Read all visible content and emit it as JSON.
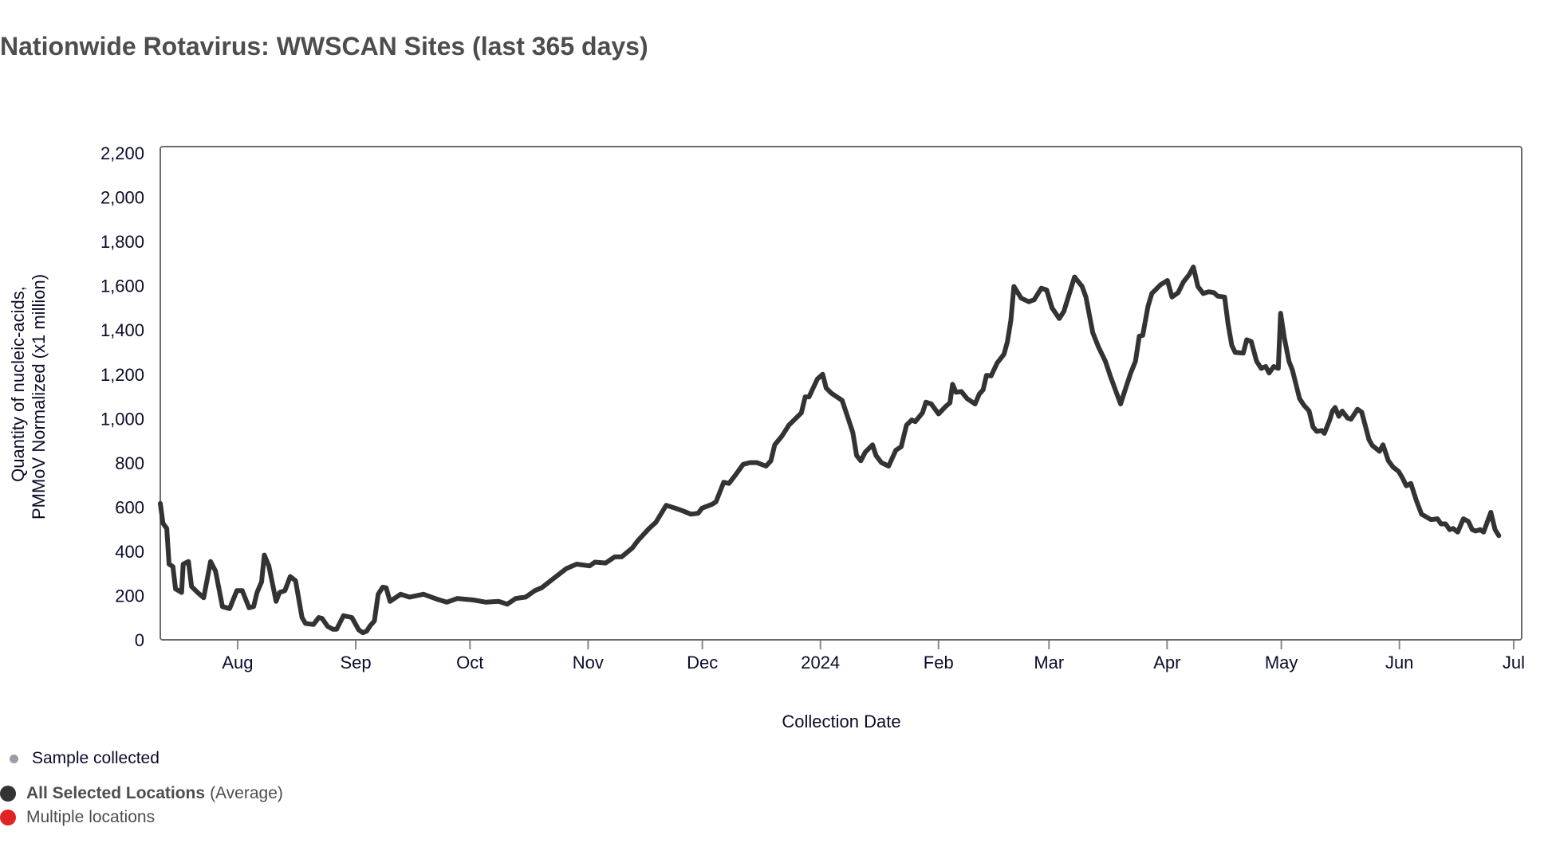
{
  "title": "Nationwide Rotavirus: WWSCAN Sites (last 365 days)",
  "legend": {
    "sample": {
      "label": "Sample collected",
      "color": "#9a9ca6"
    },
    "average": {
      "label_bold": "All Selected Locations",
      "label_suffix": "(Average)",
      "color": "#333333"
    },
    "multiple": {
      "label": "Multiple locations",
      "color": "#e02424"
    }
  },
  "chart_data": {
    "type": "line",
    "title": "Nationwide Rotavirus: WWSCAN Sites (last 365 days)",
    "xlabel": "Collection Date",
    "ylabel_lines": [
      "Quantity of nucleic-acids,",
      "PMMoV Normalized (x1 million)"
    ],
    "x_unit": "days since 2023-08-01",
    "xlim": [
      -20.3,
      337.1
    ],
    "ylim": [
      0,
      2229
    ],
    "grid": false,
    "line_color": "#333333",
    "yticks": [
      {
        "value": 0,
        "label": "0"
      },
      {
        "value": 200,
        "label": "200"
      },
      {
        "value": 400,
        "label": "400"
      },
      {
        "value": 600,
        "label": "600"
      },
      {
        "value": 800,
        "label": "800"
      },
      {
        "value": 1000,
        "label": "1,000"
      },
      {
        "value": 1200,
        "label": "1,200"
      },
      {
        "value": 1400,
        "label": "1,400"
      },
      {
        "value": 1600,
        "label": "1,600"
      },
      {
        "value": 1800,
        "label": "1,800"
      },
      {
        "value": 2000,
        "label": "2,000"
      },
      {
        "value": 2200,
        "label": "2,200"
      }
    ],
    "xticks": [
      {
        "value": 0,
        "label": "Aug"
      },
      {
        "value": 31,
        "label": "Sep"
      },
      {
        "value": 61,
        "label": "Oct"
      },
      {
        "value": 92,
        "label": "Nov"
      },
      {
        "value": 122,
        "label": "Dec"
      },
      {
        "value": 153,
        "label": "2024"
      },
      {
        "value": 184,
        "label": "Feb"
      },
      {
        "value": 213,
        "label": "Mar"
      },
      {
        "value": 244,
        "label": "Apr"
      },
      {
        "value": 274,
        "label": "May"
      },
      {
        "value": 305,
        "label": "Jun"
      },
      {
        "value": 335,
        "label": "Jul"
      }
    ],
    "series": [
      {
        "name": "All Selected Locations (Average)",
        "points": [
          [
            -20.3,
            616
          ],
          [
            -19.6,
            527
          ],
          [
            -18.6,
            503
          ],
          [
            -18,
            342
          ],
          [
            -17,
            331
          ],
          [
            -16.3,
            230
          ],
          [
            -14.7,
            214
          ],
          [
            -14.3,
            342
          ],
          [
            -12.9,
            354
          ],
          [
            -12.1,
            241
          ],
          [
            -10.5,
            214
          ],
          [
            -8.9,
            190
          ],
          [
            -7.1,
            354
          ],
          [
            -5.8,
            310
          ],
          [
            -4,
            150
          ],
          [
            -2.1,
            141
          ],
          [
            -0.2,
            222
          ],
          [
            1.2,
            222
          ],
          [
            3,
            145
          ],
          [
            4.2,
            150
          ],
          [
            5.1,
            214
          ],
          [
            6.3,
            262
          ],
          [
            7,
            383
          ],
          [
            8.2,
            334
          ],
          [
            10.1,
            174
          ],
          [
            11,
            214
          ],
          [
            12.4,
            222
          ],
          [
            13.8,
            286
          ],
          [
            15.2,
            267
          ],
          [
            16.9,
            101
          ],
          [
            17.8,
            74
          ],
          [
            19.9,
            69
          ],
          [
            21.3,
            101
          ],
          [
            22.2,
            96
          ],
          [
            23.6,
            61
          ],
          [
            25,
            48
          ],
          [
            26,
            48
          ],
          [
            27.8,
            109
          ],
          [
            30,
            101
          ],
          [
            31.8,
            45
          ],
          [
            32.9,
            32
          ],
          [
            33.9,
            40
          ],
          [
            34.8,
            64
          ],
          [
            35.9,
            85
          ],
          [
            36.9,
            206
          ],
          [
            38.1,
            238
          ],
          [
            39,
            235
          ],
          [
            40,
            174
          ],
          [
            42.8,
            206
          ],
          [
            45.1,
            193
          ],
          [
            48.8,
            206
          ],
          [
            52.1,
            185
          ],
          [
            54.9,
            170
          ],
          [
            57.7,
            187
          ],
          [
            61.9,
            180
          ],
          [
            65.2,
            170
          ],
          [
            68.5,
            174
          ],
          [
            70.8,
            161
          ],
          [
            73,
            187
          ],
          [
            75.6,
            193
          ],
          [
            78,
            222
          ],
          [
            79.8,
            235
          ],
          [
            83,
            278
          ],
          [
            86.3,
            322
          ],
          [
            89,
            342
          ],
          [
            92.4,
            334
          ],
          [
            93.8,
            351
          ],
          [
            96.6,
            347
          ],
          [
            99,
            375
          ],
          [
            100.8,
            375
          ],
          [
            103.6,
            415
          ],
          [
            105,
            447
          ],
          [
            108,
            503
          ],
          [
            109.8,
            531
          ],
          [
            112.5,
            608
          ],
          [
            114.9,
            595
          ],
          [
            116.7,
            584
          ],
          [
            119,
            568
          ],
          [
            120.9,
            572
          ],
          [
            121.9,
            595
          ],
          [
            124.6,
            613
          ],
          [
            125.6,
            624
          ],
          [
            127.6,
            712
          ],
          [
            129,
            707
          ],
          [
            130.7,
            745
          ],
          [
            132.7,
            793
          ],
          [
            134.5,
            801
          ],
          [
            136.3,
            801
          ],
          [
            138.7,
            785
          ],
          [
            140,
            809
          ],
          [
            141,
            881
          ],
          [
            142.9,
            921
          ],
          [
            144.7,
            970
          ],
          [
            148,
            1026
          ],
          [
            149,
            1098
          ],
          [
            150,
            1098
          ],
          [
            152.2,
            1179
          ],
          [
            153.6,
            1200
          ],
          [
            154.5,
            1138
          ],
          [
            155.9,
            1114
          ],
          [
            158.7,
            1082
          ],
          [
            160.1,
            1010
          ],
          [
            161.5,
            937
          ],
          [
            162.5,
            833
          ],
          [
            163.6,
            809
          ],
          [
            164.8,
            849
          ],
          [
            166.7,
            881
          ],
          [
            167.6,
            833
          ],
          [
            169,
            801
          ],
          [
            170.9,
            785
          ],
          [
            172.8,
            857
          ],
          [
            174.2,
            873
          ],
          [
            175.6,
            970
          ],
          [
            177,
            994
          ],
          [
            177.9,
            986
          ],
          [
            179.8,
            1026
          ],
          [
            180.7,
            1074
          ],
          [
            182.1,
            1066
          ],
          [
            184,
            1021
          ],
          [
            185.9,
            1055
          ],
          [
            187,
            1071
          ],
          [
            187.7,
            1155
          ],
          [
            188.6,
            1119
          ],
          [
            190,
            1122
          ],
          [
            191.5,
            1090
          ],
          [
            193.6,
            1066
          ],
          [
            194.7,
            1111
          ],
          [
            195.7,
            1130
          ],
          [
            196.6,
            1195
          ],
          [
            197.8,
            1193
          ],
          [
            199.4,
            1251
          ],
          [
            201.2,
            1291
          ],
          [
            202.1,
            1348
          ],
          [
            203,
            1444
          ],
          [
            203.8,
            1597
          ],
          [
            205.7,
            1544
          ],
          [
            207.7,
            1528
          ],
          [
            209.1,
            1537
          ],
          [
            211,
            1589
          ],
          [
            212.4,
            1581
          ],
          [
            213.8,
            1500
          ],
          [
            215.7,
            1452
          ],
          [
            216.9,
            1484
          ],
          [
            219.7,
            1640
          ],
          [
            221.7,
            1597
          ],
          [
            222.7,
            1549
          ],
          [
            224.5,
            1388
          ],
          [
            226,
            1323
          ],
          [
            227.8,
            1259
          ],
          [
            229.2,
            1187
          ],
          [
            230.6,
            1122
          ],
          [
            231.8,
            1066
          ],
          [
            233,
            1130
          ],
          [
            234.4,
            1203
          ],
          [
            235.7,
            1259
          ],
          [
            236.7,
            1372
          ],
          [
            237.6,
            1376
          ],
          [
            239,
            1508
          ],
          [
            240,
            1565
          ],
          [
            242.3,
            1605
          ],
          [
            244.1,
            1624
          ],
          [
            245.3,
            1549
          ],
          [
            246.9,
            1569
          ],
          [
            248.3,
            1618
          ],
          [
            249.8,
            1650
          ],
          [
            250.9,
            1685
          ],
          [
            252.1,
            1597
          ],
          [
            253.5,
            1565
          ],
          [
            254.9,
            1573
          ],
          [
            256.3,
            1569
          ],
          [
            257.3,
            1553
          ],
          [
            259.1,
            1549
          ],
          [
            260,
            1428
          ],
          [
            261,
            1331
          ],
          [
            261.9,
            1299
          ],
          [
            264,
            1296
          ],
          [
            264.9,
            1356
          ],
          [
            266.1,
            1348
          ],
          [
            267.5,
            1259
          ],
          [
            268.7,
            1227
          ],
          [
            269.9,
            1235
          ],
          [
            270.8,
            1206
          ],
          [
            272,
            1235
          ],
          [
            273.2,
            1227
          ],
          [
            273.8,
            1476
          ],
          [
            274.8,
            1364
          ],
          [
            276,
            1259
          ],
          [
            276.9,
            1219
          ],
          [
            278.8,
            1090
          ],
          [
            279.9,
            1061
          ],
          [
            281.3,
            1034
          ],
          [
            282.3,
            962
          ],
          [
            283.3,
            942
          ],
          [
            284.6,
            946
          ],
          [
            285.3,
            933
          ],
          [
            286.7,
            994
          ],
          [
            287.4,
            1034
          ],
          [
            288.1,
            1050
          ],
          [
            289.1,
            1010
          ],
          [
            290,
            1034
          ],
          [
            291.4,
            1002
          ],
          [
            292.3,
            997
          ],
          [
            294,
            1042
          ],
          [
            295.1,
            1029
          ],
          [
            297,
            905
          ],
          [
            297.9,
            878
          ],
          [
            299.8,
            852
          ],
          [
            300.7,
            881
          ],
          [
            302.1,
            809
          ],
          [
            303.3,
            781
          ],
          [
            304.8,
            761
          ],
          [
            305.9,
            728
          ],
          [
            306.8,
            696
          ],
          [
            308,
            707
          ],
          [
            309.4,
            632
          ],
          [
            310.8,
            568
          ],
          [
            313.3,
            543
          ],
          [
            315,
            547
          ],
          [
            315.9,
            524
          ],
          [
            317.1,
            524
          ],
          [
            318.2,
            498
          ],
          [
            319.1,
            503
          ],
          [
            320.3,
            487
          ],
          [
            321.8,
            547
          ],
          [
            323.1,
            535
          ],
          [
            324.1,
            498
          ],
          [
            325,
            492
          ],
          [
            326.2,
            498
          ],
          [
            327.1,
            487
          ],
          [
            329,
            576
          ],
          [
            330.1,
            498
          ],
          [
            331.1,
            471
          ]
        ]
      }
    ]
  }
}
